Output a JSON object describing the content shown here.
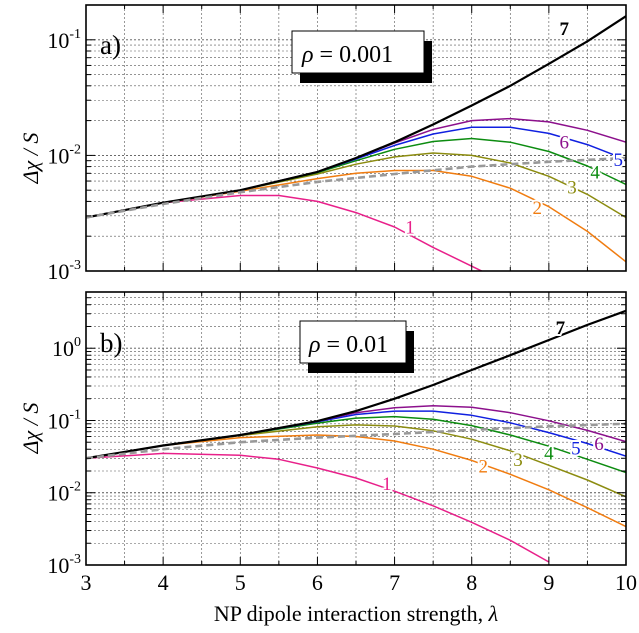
{
  "figure": {
    "xlabel_text": "NP dipole interaction strength, ",
    "xlabel_symbol": "λ",
    "x_tick_labels": [
      "3",
      "4",
      "5",
      "6",
      "7",
      "8",
      "9",
      "10"
    ]
  },
  "colors": {
    "1": "#e8208a",
    "2": "#f07c10",
    "3": "#8c8c10",
    "4": "#0c8c10",
    "5": "#1020e0",
    "6": "#8c108c",
    "7": "#000000",
    "dashed": "#999999"
  },
  "chart_data": [
    {
      "type": "line",
      "panel_label": "a)",
      "annotation_symbol": "ρ",
      "annotation_value": " = 0.001",
      "ylabel_symbol": "Δχ",
      "ylabel_rest": " / S",
      "y_scale": "log",
      "xlim": [
        3,
        10
      ],
      "ylim": [
        0.001,
        0.2
      ],
      "y_tick_labels": [
        {
          "base": "10",
          "exp": "-1",
          "value": 0.1
        },
        {
          "base": "10",
          "exp": "-2",
          "value": 0.01
        },
        {
          "base": "10",
          "exp": "-3",
          "value": 0.001
        }
      ],
      "grid": true,
      "series": [
        {
          "name": "1",
          "label_at": [
            7.2,
            0.0023
          ],
          "points": [
            [
              3,
              0.0029
            ],
            [
              4,
              0.0039
            ],
            [
              5,
              0.0045
            ],
            [
              5.5,
              0.0045
            ],
            [
              6,
              0.004
            ],
            [
              6.5,
              0.0032
            ],
            [
              7,
              0.0024
            ],
            [
              7.5,
              0.0016
            ],
            [
              8,
              0.0011
            ],
            [
              8.3,
              0.00088
            ]
          ]
        },
        {
          "name": "2",
          "label_at": [
            8.85,
            0.0034
          ],
          "points": [
            [
              3,
              0.0029
            ],
            [
              4,
              0.0039
            ],
            [
              5,
              0.0049
            ],
            [
              6,
              0.0063
            ],
            [
              6.5,
              0.007
            ],
            [
              7,
              0.0074
            ],
            [
              7.5,
              0.0074
            ],
            [
              8,
              0.0066
            ],
            [
              8.5,
              0.0052
            ],
            [
              9,
              0.0036
            ],
            [
              9.5,
              0.0022
            ],
            [
              10,
              0.0012
            ]
          ]
        },
        {
          "name": "3",
          "label_at": [
            9.3,
            0.0051
          ],
          "points": [
            [
              3,
              0.0029
            ],
            [
              4,
              0.0039
            ],
            [
              5,
              0.005
            ],
            [
              6,
              0.0069
            ],
            [
              6.5,
              0.0084
            ],
            [
              7,
              0.0097
            ],
            [
              7.5,
              0.0105
            ],
            [
              8,
              0.01
            ],
            [
              8.5,
              0.0086
            ],
            [
              9,
              0.0066
            ],
            [
              9.5,
              0.0046
            ],
            [
              10,
              0.0029
            ]
          ]
        },
        {
          "name": "4",
          "label_at": [
            9.6,
            0.0069
          ],
          "points": [
            [
              3,
              0.0029
            ],
            [
              4,
              0.0039
            ],
            [
              5,
              0.005
            ],
            [
              6,
              0.0071
            ],
            [
              6.5,
              0.009
            ],
            [
              7,
              0.0113
            ],
            [
              7.5,
              0.0132
            ],
            [
              8,
              0.014
            ],
            [
              8.5,
              0.013
            ],
            [
              9,
              0.0108
            ],
            [
              9.5,
              0.0081
            ],
            [
              10,
              0.0056
            ]
          ]
        },
        {
          "name": "5",
          "label_at": [
            9.9,
            0.0088
          ],
          "points": [
            [
              3,
              0.0029
            ],
            [
              4,
              0.0039
            ],
            [
              5,
              0.005
            ],
            [
              6,
              0.0072
            ],
            [
              6.5,
              0.0093
            ],
            [
              7,
              0.0122
            ],
            [
              7.5,
              0.0153
            ],
            [
              8,
              0.0175
            ],
            [
              8.5,
              0.0175
            ],
            [
              9,
              0.0155
            ],
            [
              9.5,
              0.0124
            ],
            [
              10,
              0.0092
            ]
          ]
        },
        {
          "name": "6",
          "label_at": [
            9.2,
            0.0125
          ],
          "points": [
            [
              3,
              0.0029
            ],
            [
              4,
              0.0039
            ],
            [
              5,
              0.005
            ],
            [
              6,
              0.0072
            ],
            [
              6.5,
              0.0095
            ],
            [
              7,
              0.0128
            ],
            [
              7.5,
              0.0168
            ],
            [
              8,
              0.02
            ],
            [
              8.5,
              0.0208
            ],
            [
              9,
              0.0195
            ],
            [
              9.5,
              0.0165
            ],
            [
              10,
              0.013
            ]
          ]
        },
        {
          "name": "7",
          "label_at": [
            9.2,
            0.12
          ],
          "points": [
            [
              3,
              0.0029
            ],
            [
              4,
              0.0039
            ],
            [
              5,
              0.005
            ],
            [
              6,
              0.0072
            ],
            [
              6.5,
              0.0095
            ],
            [
              7,
              0.013
            ],
            [
              7.5,
              0.0185
            ],
            [
              8,
              0.027
            ],
            [
              8.5,
              0.04
            ],
            [
              9,
              0.062
            ],
            [
              9.5,
              0.097
            ],
            [
              10,
              0.16
            ]
          ]
        },
        {
          "name": "",
          "dashed": true,
          "points": [
            [
              3,
              0.0029
            ],
            [
              4,
              0.0038
            ],
            [
              5,
              0.0048
            ],
            [
              6,
              0.0059
            ],
            [
              7,
              0.0069
            ],
            [
              8,
              0.008
            ],
            [
              9,
              0.0088
            ],
            [
              10,
              0.0095
            ]
          ]
        }
      ]
    },
    {
      "type": "line",
      "panel_label": "b)",
      "annotation_symbol": "ρ",
      "annotation_value": " = 0.01",
      "ylabel_symbol": "Δχ",
      "ylabel_rest": " / S",
      "y_scale": "log",
      "xlim": [
        3,
        10
      ],
      "ylim": [
        0.001,
        6
      ],
      "y_tick_labels": [
        {
          "base": "10",
          "exp": "0",
          "value": 1
        },
        {
          "base": "10",
          "exp": "-1",
          "value": 0.1
        },
        {
          "base": "10",
          "exp": "-2",
          "value": 0.01
        },
        {
          "base": "10",
          "exp": "-3",
          "value": 0.001
        }
      ],
      "grid": true,
      "series": [
        {
          "name": "1",
          "label_at": [
            6.9,
            0.0125
          ],
          "points": [
            [
              3,
              0.03
            ],
            [
              4,
              0.035
            ],
            [
              5,
              0.033
            ],
            [
              5.5,
              0.029
            ],
            [
              6,
              0.022
            ],
            [
              6.5,
              0.016
            ],
            [
              7,
              0.0105
            ],
            [
              7.5,
              0.0066
            ],
            [
              8,
              0.0039
            ],
            [
              8.5,
              0.0022
            ],
            [
              9,
              0.0011
            ]
          ]
        },
        {
          "name": "2",
          "label_at": [
            8.15,
            0.022
          ],
          "points": [
            [
              3,
              0.03
            ],
            [
              4,
              0.045
            ],
            [
              5,
              0.058
            ],
            [
              6,
              0.063
            ],
            [
              6.5,
              0.06
            ],
            [
              7,
              0.052
            ],
            [
              7.5,
              0.04
            ],
            [
              8,
              0.028
            ],
            [
              8.5,
              0.018
            ],
            [
              9,
              0.011
            ],
            [
              9.5,
              0.0062
            ],
            [
              10,
              0.0034
            ]
          ]
        },
        {
          "name": "3",
          "label_at": [
            8.6,
            0.027
          ],
          "points": [
            [
              3,
              0.03
            ],
            [
              4,
              0.045
            ],
            [
              5,
              0.062
            ],
            [
              6,
              0.082
            ],
            [
              6.5,
              0.087
            ],
            [
              7,
              0.084
            ],
            [
              7.5,
              0.072
            ],
            [
              8,
              0.055
            ],
            [
              8.5,
              0.038
            ],
            [
              9,
              0.024
            ],
            [
              9.5,
              0.015
            ],
            [
              10,
              0.0088
            ]
          ]
        },
        {
          "name": "4",
          "label_at": [
            9.0,
            0.033
          ],
          "points": [
            [
              3,
              0.03
            ],
            [
              4,
              0.045
            ],
            [
              5,
              0.063
            ],
            [
              6,
              0.092
            ],
            [
              6.5,
              0.108
            ],
            [
              7,
              0.113
            ],
            [
              7.5,
              0.104
            ],
            [
              8,
              0.085
            ],
            [
              8.5,
              0.063
            ],
            [
              9,
              0.044
            ],
            [
              9.5,
              0.029
            ],
            [
              10,
              0.019
            ]
          ]
        },
        {
          "name": "5",
          "label_at": [
            9.35,
            0.039
          ],
          "points": [
            [
              3,
              0.03
            ],
            [
              4,
              0.045
            ],
            [
              5,
              0.063
            ],
            [
              6,
              0.096
            ],
            [
              6.5,
              0.121
            ],
            [
              7,
              0.135
            ],
            [
              7.5,
              0.135
            ],
            [
              8,
              0.118
            ],
            [
              8.5,
              0.093
            ],
            [
              9,
              0.068
            ],
            [
              9.5,
              0.048
            ],
            [
              10,
              0.032
            ]
          ]
        },
        {
          "name": "6",
          "label_at": [
            9.65,
            0.045
          ],
          "points": [
            [
              3,
              0.03
            ],
            [
              4,
              0.045
            ],
            [
              5,
              0.063
            ],
            [
              6,
              0.098
            ],
            [
              6.5,
              0.128
            ],
            [
              7,
              0.15
            ],
            [
              7.5,
              0.16
            ],
            [
              8,
              0.152
            ],
            [
              8.5,
              0.128
            ],
            [
              9,
              0.099
            ],
            [
              9.5,
              0.073
            ],
            [
              10,
              0.051
            ]
          ]
        },
        {
          "name": "7",
          "label_at": [
            9.15,
            1.8
          ],
          "points": [
            [
              3,
              0.03
            ],
            [
              4,
              0.045
            ],
            [
              5,
              0.063
            ],
            [
              6,
              0.098
            ],
            [
              6.5,
              0.135
            ],
            [
              7,
              0.2
            ],
            [
              7.5,
              0.31
            ],
            [
              8,
              0.5
            ],
            [
              8.5,
              0.8
            ],
            [
              9,
              1.3
            ],
            [
              9.5,
              2.1
            ],
            [
              10,
              3.3
            ]
          ]
        },
        {
          "name": "",
          "dashed": true,
          "points": [
            [
              3,
              0.03
            ],
            [
              4,
              0.04
            ],
            [
              5,
              0.05
            ],
            [
              6,
              0.058
            ],
            [
              7,
              0.065
            ],
            [
              8,
              0.074
            ],
            [
              9,
              0.083
            ],
            [
              10,
              0.09
            ]
          ]
        }
      ]
    }
  ]
}
